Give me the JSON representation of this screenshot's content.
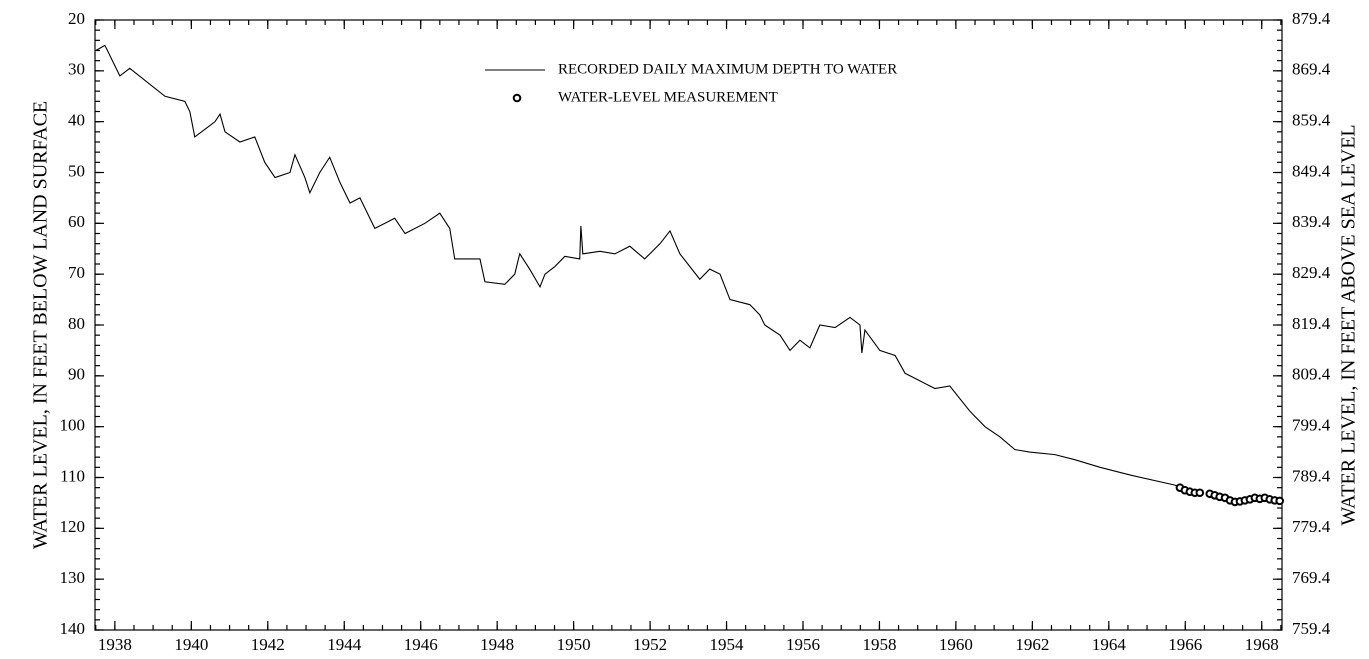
{
  "chart_data": {
    "type": "line",
    "y_label": "WATER LEVEL, IN FEET BELOW LAND SURFACE",
    "y2_label": "WATER LEVEL, IN FEET ABOVE SEA LEVEL",
    "xlim": [
      1937.48,
      1968.53
    ],
    "xticks": [
      1938,
      1940,
      1942,
      1944,
      1946,
      1948,
      1950,
      1952,
      1954,
      1956,
      1958,
      1960,
      1962,
      1964,
      1966,
      1968
    ],
    "xminor": 0.5,
    "ylim": [
      20,
      140
    ],
    "y_inverted": true,
    "yticks": [
      20,
      30,
      40,
      50,
      60,
      70,
      80,
      90,
      100,
      110,
      120,
      130,
      140
    ],
    "yminor": 2,
    "y2lim": [
      879.4,
      759.4
    ],
    "y2ticks": [
      879.4,
      869.4,
      859.4,
      849.4,
      839.4,
      829.4,
      819.4,
      809.4,
      799.4,
      789.4,
      779.4,
      769.4,
      759.4
    ],
    "grid": false,
    "series": [
      {
        "name": "RECORDED DAILY MAXIMUM DEPTH TO WATER",
        "style": "line",
        "color": "#000000",
        "x": [
          1937.5,
          1937.74,
          1938.0,
          1938.13,
          1938.39,
          1939.31,
          1939.83,
          1939.96,
          1940.09,
          1940.62,
          1940.75,
          1940.88,
          1941.27,
          1941.66,
          1941.92,
          1942.19,
          1942.58,
          1942.71,
          1942.97,
          1943.1,
          1943.36,
          1943.62,
          1943.89,
          1944.15,
          1944.41,
          1944.8,
          1945.06,
          1945.32,
          1945.59,
          1946.11,
          1946.5,
          1946.76,
          1946.89,
          1947.55,
          1947.68,
          1948.2,
          1948.46,
          1948.59,
          1948.85,
          1949.12,
          1949.25,
          1949.51,
          1949.77,
          1950.16,
          1950.19,
          1950.24,
          1950.69,
          1951.08,
          1951.47,
          1951.86,
          1952.26,
          1952.52,
          1952.78,
          1953.3,
          1953.56,
          1953.83,
          1954.09,
          1954.61,
          1954.87,
          1955.0,
          1955.4,
          1955.66,
          1955.92,
          1956.18,
          1956.44,
          1956.84,
          1957.23,
          1957.49,
          1957.54,
          1957.62,
          1958.01,
          1958.41,
          1958.67,
          1959.06,
          1959.45,
          1959.84,
          1960.37,
          1960.76,
          1961.15,
          1961.54,
          1961.93,
          1962.59,
          1963.11,
          1963.77,
          1964.55,
          1965.73,
          1965.86
        ],
        "values": [
          26,
          25,
          29,
          31,
          29.5,
          35,
          36,
          38,
          43,
          40,
          38.5,
          42,
          44,
          43,
          48,
          51,
          50,
          46.5,
          51,
          54,
          50,
          47,
          52,
          56,
          55,
          61,
          60,
          59,
          62,
          60,
          58,
          61,
          67,
          67,
          71.5,
          72,
          70,
          66,
          69,
          72.5,
          70,
          68.5,
          66.5,
          67,
          60.5,
          66,
          65.5,
          66,
          64.5,
          67,
          64,
          61.5,
          66,
          71,
          69,
          70,
          75,
          76,
          78,
          80,
          82,
          85,
          83,
          84.5,
          80,
          80.5,
          78.5,
          80,
          85.5,
          81,
          85,
          86,
          89.5,
          91,
          92.5,
          92,
          97,
          100,
          102,
          104.5,
          105,
          105.5,
          106.5,
          108,
          109.5,
          111.5,
          112
        ]
      },
      {
        "name": "WATER-LEVEL MEASUREMENT",
        "style": "marker",
        "color": "#000000",
        "x": [
          1965.86,
          1965.99,
          1966.12,
          1966.25,
          1966.38,
          1966.64,
          1966.77,
          1966.9,
          1967.04,
          1967.17,
          1967.3,
          1967.43,
          1967.56,
          1967.69,
          1967.82,
          1967.95,
          1968.08,
          1968.21,
          1968.34,
          1968.47
        ],
        "values": [
          112,
          112.5,
          112.8,
          113,
          113,
          113.2,
          113.5,
          113.8,
          114,
          114.5,
          114.8,
          114.7,
          114.5,
          114.3,
          114,
          114.2,
          114,
          114.3,
          114.5,
          114.6
        ]
      }
    ]
  }
}
